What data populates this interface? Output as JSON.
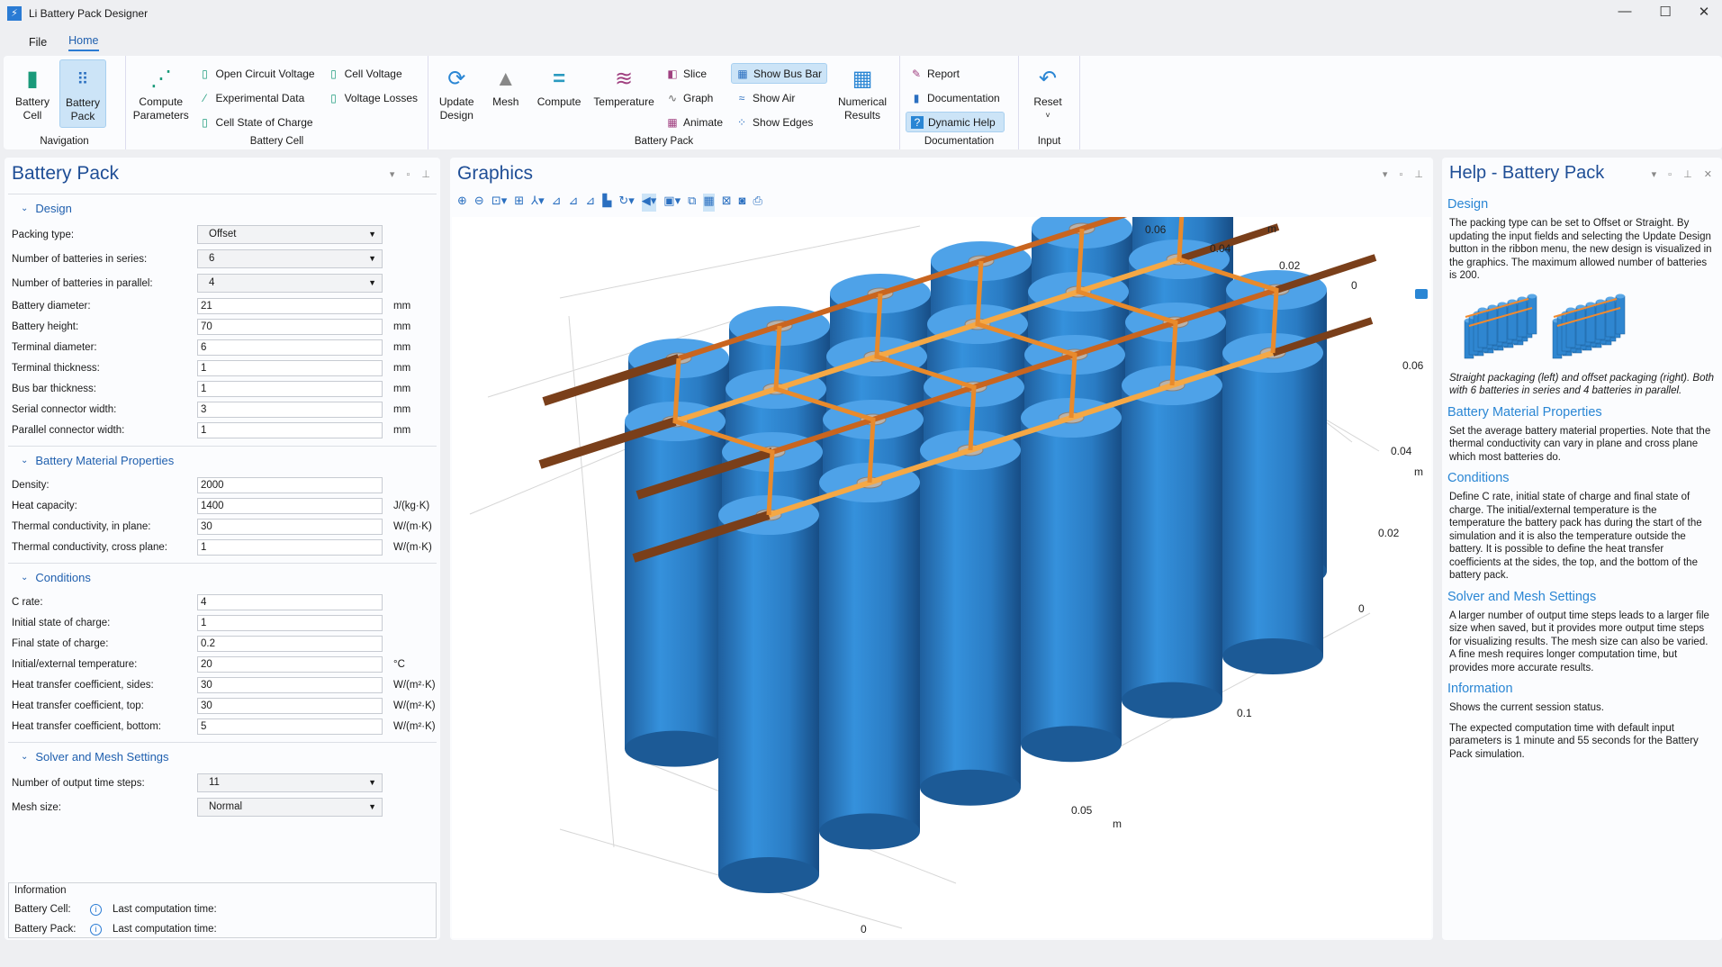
{
  "window": {
    "title": "Li Battery Pack Designer",
    "minimize": "—",
    "maximize": "☐",
    "close": "✕"
  },
  "menu": {
    "file": "File",
    "home": "Home"
  },
  "ribbon": {
    "navigation": {
      "label": "Navigation",
      "battery_cell": "Battery Cell",
      "battery_pack": "Battery Pack"
    },
    "battery_cell": {
      "label": "Battery Cell",
      "compute_parameters": "Compute Parameters",
      "open_circuit_voltage": "Open Circuit Voltage",
      "experimental_data": "Experimental Data",
      "cell_state_of_charge": "Cell State of Charge",
      "cell_voltage": "Cell Voltage",
      "voltage_losses": "Voltage Losses"
    },
    "battery_pack": {
      "label": "Battery Pack",
      "update_design": "Update Design",
      "mesh": "Mesh",
      "compute": "Compute",
      "temperature": "Temperature",
      "slice": "Slice",
      "graph": "Graph",
      "animate": "Animate",
      "show_bus_bar": "Show Bus Bar",
      "show_air": "Show Air",
      "show_edges": "Show Edges",
      "numerical_results": "Numerical Results"
    },
    "documentation": {
      "label": "Documentation",
      "report": "Report",
      "documentation": "Documentation",
      "dynamic_help": "Dynamic Help"
    },
    "input": {
      "label": "Input",
      "reset": "Reset"
    }
  },
  "left": {
    "title": "Battery Pack",
    "design": {
      "header": "Design",
      "rows": [
        {
          "label": "Packing type:",
          "value": "Offset",
          "type": "select"
        },
        {
          "label": "Number of batteries in series:",
          "value": "6",
          "type": "select"
        },
        {
          "label": "Number of batteries in parallel:",
          "value": "4",
          "type": "select"
        },
        {
          "label": "Battery diameter:",
          "value": "21",
          "unit": "mm"
        },
        {
          "label": "Battery height:",
          "value": "70",
          "unit": "mm"
        },
        {
          "label": "Terminal diameter:",
          "value": "6",
          "unit": "mm"
        },
        {
          "label": "Terminal thickness:",
          "value": "1",
          "unit": "mm"
        },
        {
          "label": "Bus bar thickness:",
          "value": "1",
          "unit": "mm"
        },
        {
          "label": "Serial connector width:",
          "value": "3",
          "unit": "mm"
        },
        {
          "label": "Parallel connector width:",
          "value": "1",
          "unit": "mm"
        }
      ]
    },
    "material": {
      "header": "Battery Material Properties",
      "rows": [
        {
          "label": "Density:",
          "value": "2000"
        },
        {
          "label": "Heat capacity:",
          "value": "1400",
          "unit": "J/(kg·K)"
        },
        {
          "label": "Thermal conductivity, in plane:",
          "value": "30",
          "unit": "W/(m·K)"
        },
        {
          "label": "Thermal conductivity, cross plane:",
          "value": "1",
          "unit": "W/(m·K)"
        }
      ]
    },
    "conditions": {
      "header": "Conditions",
      "rows": [
        {
          "label": "C rate:",
          "value": "4"
        },
        {
          "label": "Initial state of charge:",
          "value": "1"
        },
        {
          "label": "Final state of charge:",
          "value": "0.2"
        },
        {
          "label": "Initial/external temperature:",
          "value": "20",
          "unit": "°C"
        },
        {
          "label": "Heat transfer coefficient, sides:",
          "value": "30",
          "unit": "W/(m²·K)"
        },
        {
          "label": "Heat transfer coefficient, top:",
          "value": "30",
          "unit": "W/(m²·K)"
        },
        {
          "label": "Heat transfer coefficient, bottom:",
          "value": "5",
          "unit": "W/(m²·K)"
        }
      ]
    },
    "solver": {
      "header": "Solver and Mesh Settings",
      "rows": [
        {
          "label": "Number of output time steps:",
          "value": "11",
          "type": "select"
        },
        {
          "label": "Mesh size:",
          "value": "Normal",
          "type": "select"
        }
      ]
    },
    "information": {
      "title": "Information",
      "battery_cell": "Battery Cell:",
      "battery_pack": "Battery Pack:",
      "last_time": "Last computation time:"
    }
  },
  "graphics": {
    "title": "Graphics",
    "axis_labels": [
      "0.06",
      "0.04",
      "0.02",
      "0",
      "m",
      "0.06",
      "0.04",
      "m",
      "0.02",
      "0",
      "0.1",
      "0.05",
      "m",
      "0"
    ],
    "colors": {
      "battery": "#2f86d0",
      "bus_bar": "#7a3f1a",
      "connector": "#f08a30"
    }
  },
  "help": {
    "title": "Help - Battery Pack",
    "sections": [
      {
        "h": "Design",
        "p": "The packing type can be set to Offset or Straight.  By updating the input fields and selecting the Update Design button in the ribbon menu, the new design is visualized in the graphics. The maximum allowed number of batteries is 200."
      },
      {
        "h": "Battery Material Properties",
        "p": "Set the average battery material properties. Note that the thermal conductivity can vary in plane and cross plane which most batteries do."
      },
      {
        "h": "Conditions",
        "p": "Define C rate, initial state of charge and final state of charge. The initial/external temperature is the temperature the battery pack has during the start of the simulation and it is also the temperature outside the battery. It is possible to define the heat transfer coefficients at the sides,  the top, and the bottom of the battery pack."
      },
      {
        "h": "Solver and Mesh Settings",
        "p": "A larger number of output time steps leads to a larger file size when saved, but it provides more output time steps for visualizing results. The mesh size can also be varied. A fine mesh requires longer computation time, but provides more accurate results."
      },
      {
        "h": "Information",
        "p": "Shows the current session status."
      }
    ],
    "caption": "Straight packaging (left) and offset packaging (right). Both with 6 batteries in series and 4 batteries in parallel.",
    "info_extra": "The expected computation time with default input parameters is 1 minute and 55 seconds for the Battery Pack simulation."
  }
}
